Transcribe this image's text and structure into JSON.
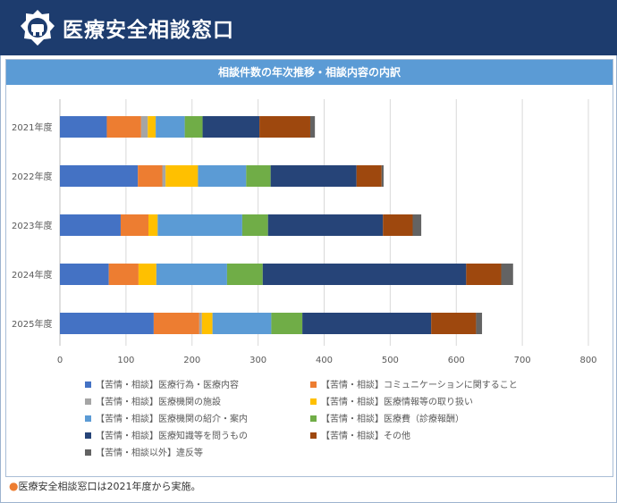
{
  "header": {
    "title": "医療安全相談窓口",
    "logo_icon": "building-emblem-icon"
  },
  "panel": {
    "title": "相談件数の年次推移・相談内容の内訳"
  },
  "footnote": {
    "marker": "●",
    "text": "医療安全相談窓口は2021年度から実施。"
  },
  "chart_data": {
    "type": "bar",
    "orientation": "horizontal",
    "stacked": true,
    "title": "",
    "xlabel": "",
    "ylabel": "",
    "categories": [
      "2021年度",
      "2022年度",
      "2023年度",
      "2024年度",
      "2025年度"
    ],
    "xlim": [
      0,
      800
    ],
    "xticks": [
      0,
      100,
      200,
      300,
      400,
      500,
      600,
      700,
      800
    ],
    "grid": true,
    "legend": "bottom",
    "series": [
      {
        "name": "【苦情・相談】医療行為・医療内容",
        "color": "#4472c4",
        "values": [
          71,
          118,
          92,
          74,
          142
        ]
      },
      {
        "name": "【苦情・相談】コミュニケーションに関すること",
        "color": "#ed7d31",
        "values": [
          52,
          37,
          42,
          45,
          69
        ]
      },
      {
        "name": "【苦情・相談】医療機関の施設",
        "color": "#a5a5a5",
        "values": [
          10,
          5,
          0,
          0,
          4
        ]
      },
      {
        "name": "【苦情・相談】医療情報等の取り扱い",
        "color": "#ffc000",
        "values": [
          12,
          49,
          14,
          27,
          16
        ]
      },
      {
        "name": "【苦情・相談】医療機関の紹介・案内",
        "color": "#5b9bd5",
        "values": [
          44,
          73,
          128,
          107,
          89
        ]
      },
      {
        "name": "【苦情・相談】医療費（診療報酬）",
        "color": "#70ad47",
        "values": [
          27,
          37,
          39,
          54,
          47
        ]
      },
      {
        "name": "【苦情・相談】医療知識等を問うもの",
        "color": "#264478",
        "values": [
          86,
          130,
          174,
          308,
          195
        ]
      },
      {
        "name": "【苦情・相談】その他",
        "color": "#9e480e",
        "values": [
          77,
          38,
          45,
          53,
          68
        ]
      },
      {
        "name": "【苦情・相談以外】違反等",
        "color": "#636363",
        "values": [
          7,
          3,
          13,
          18,
          9
        ]
      }
    ]
  }
}
